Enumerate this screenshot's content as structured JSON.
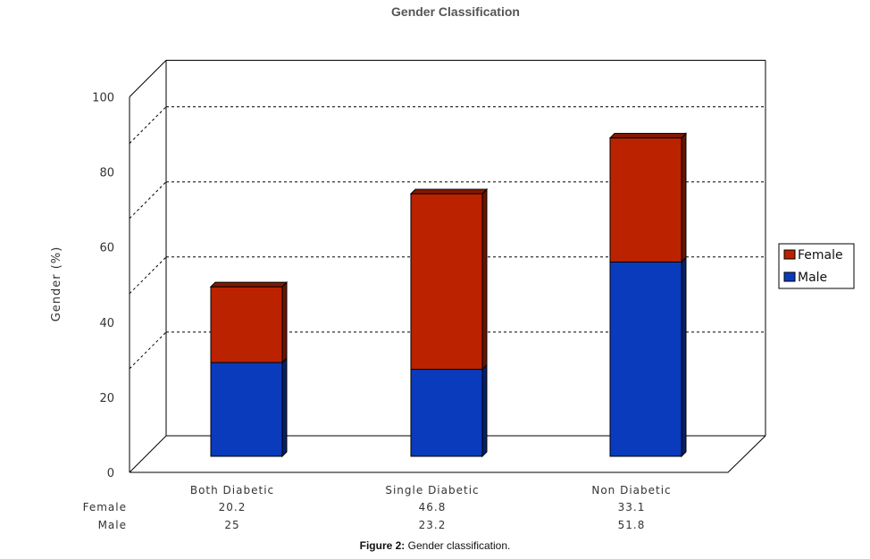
{
  "chart_data": {
    "type": "bar",
    "stacked": true,
    "three_d": true,
    "title": "Gender Classification",
    "ylabel": "Gender (%)",
    "xlabel": "",
    "categories": [
      "Both Diabetic",
      "Single Diabetic",
      "Non Diabetic"
    ],
    "series": [
      {
        "name": "Male",
        "values": [
          25,
          23.2,
          51.8
        ],
        "color": "#0a3bbd"
      },
      {
        "name": "Female",
        "values": [
          20.2,
          46.8,
          33.1
        ],
        "color": "#bb2200"
      }
    ],
    "table_values": {
      "Female": [
        "20.2",
        "46.8",
        "33.1"
      ],
      "Male": [
        "25",
        "23.2",
        "51.8"
      ]
    },
    "yticks": [
      "0",
      "20",
      "40",
      "60",
      "80",
      "100"
    ],
    "ylim": [
      0,
      100
    ],
    "grid": true,
    "legend": {
      "placement": "right",
      "entries": [
        "Female",
        "Male"
      ]
    }
  },
  "caption": {
    "label": "Figure 2:",
    "text": " Gender classification."
  }
}
